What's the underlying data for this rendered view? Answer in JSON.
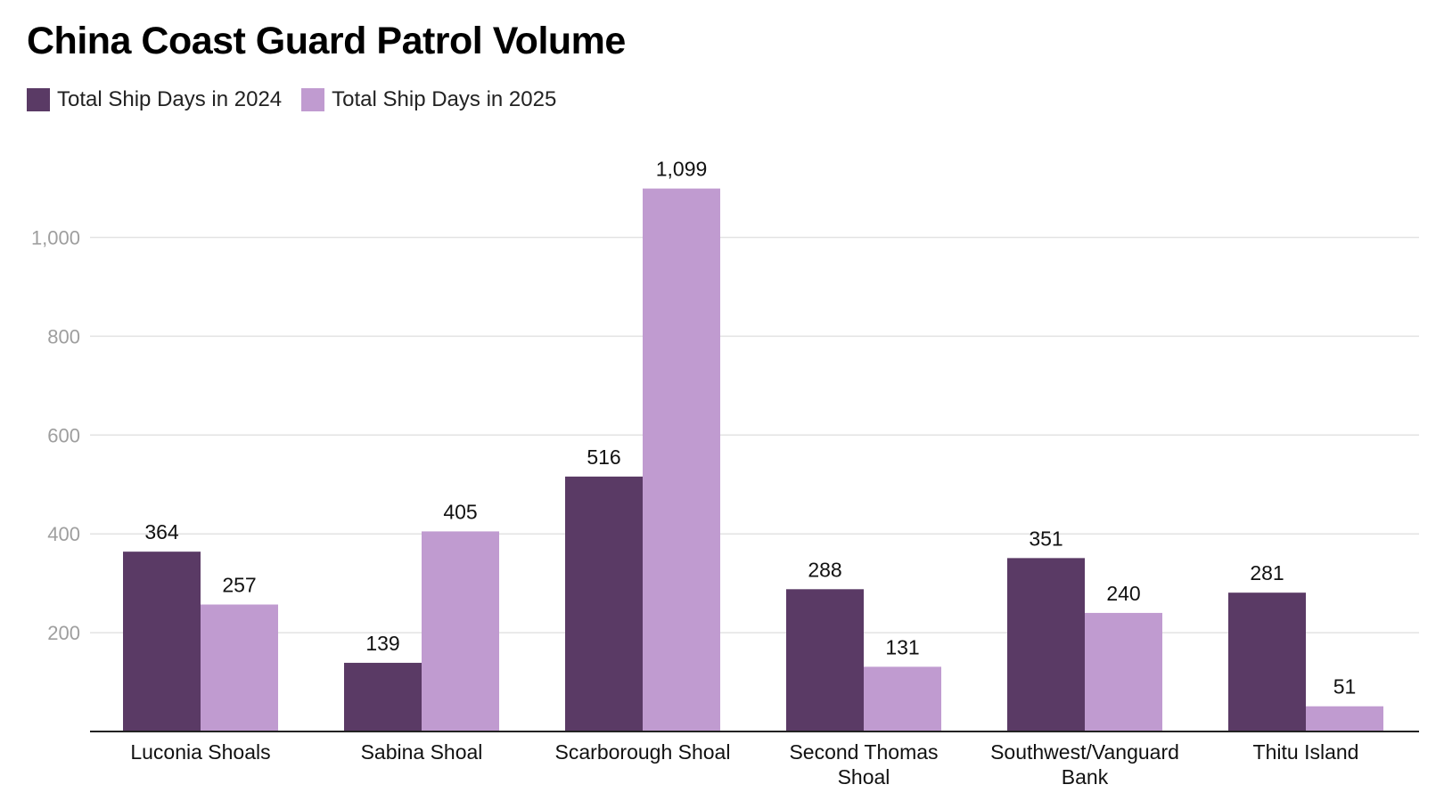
{
  "chart_data": {
    "type": "bar",
    "title": "China Coast Guard Patrol Volume",
    "categories": [
      [
        "Luconia Shoals"
      ],
      [
        "Sabina Shoal"
      ],
      [
        "Scarborough Shoal"
      ],
      [
        "Second Thomas",
        "Shoal"
      ],
      [
        "Southwest/Vanguard",
        "Bank"
      ],
      [
        "Thitu Island"
      ]
    ],
    "series": [
      {
        "name": "Total Ship Days in 2024",
        "color": "#5a3a65",
        "values": [
          364,
          139,
          516,
          288,
          351,
          281
        ],
        "labels": [
          "364",
          "139",
          "516",
          "288",
          "351",
          "281"
        ]
      },
      {
        "name": "Total Ship Days in 2025",
        "color": "#c09bd0",
        "values": [
          257,
          405,
          1099,
          131,
          240,
          51
        ],
        "labels": [
          "257",
          "405",
          "1,099",
          "131",
          "240",
          "51"
        ]
      }
    ],
    "yticks": [
      {
        "value": 200,
        "label": "200"
      },
      {
        "value": 400,
        "label": "400"
      },
      {
        "value": 600,
        "label": "600"
      },
      {
        "value": 800,
        "label": "800"
      },
      {
        "value": 1000,
        "label": "1,000"
      }
    ],
    "ylim": [
      0,
      1100
    ],
    "xlabel": "",
    "ylabel": "",
    "grid": true,
    "legend_position": "top-left"
  }
}
